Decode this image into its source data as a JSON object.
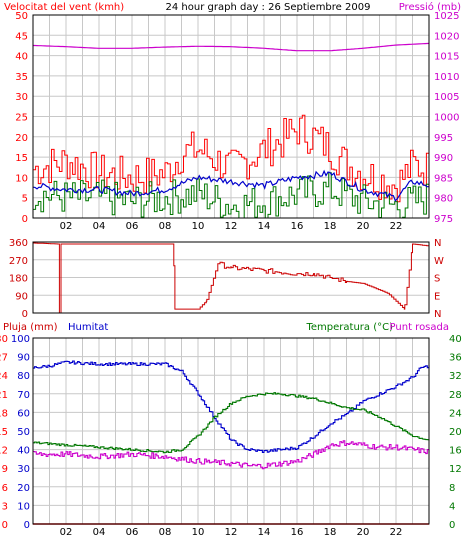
{
  "header": {
    "left": "Velocitat del vent (kmh)",
    "center": "24 hour graph day : 26 Septiembre 2009",
    "right": "Pressió (mb)"
  },
  "colors": {
    "wind": "#ff0000",
    "gust": "#ff0000",
    "avg_wind": "#0000cc",
    "direction": "#cc0000",
    "pressure": "#cc00cc",
    "rain": "#ff0000",
    "humidity": "#0000cc",
    "temperature": "#007700",
    "dewpoint": "#cc00cc",
    "grid": "#c8c8c8",
    "frame": "#000000"
  },
  "chart_data": [
    {
      "type": "line",
      "name": "wind-pressure",
      "x_ticks": [
        "02",
        "04",
        "06",
        "08",
        "10",
        "12",
        "14",
        "16",
        "18",
        "20",
        "22"
      ],
      "y_left": {
        "ticks": [
          "0",
          "5",
          "10",
          "15",
          "20",
          "25",
          "30",
          "35",
          "40",
          "45",
          "50"
        ],
        "min": 0,
        "max": 50
      },
      "y_right": {
        "ticks": [
          "975",
          "980",
          "985",
          "990",
          "995",
          "1000",
          "1005",
          "1010",
          "1015",
          "1020",
          "1025"
        ],
        "min": 975,
        "max": 1025
      },
      "series": [
        {
          "key": "pressure",
          "axis": "right",
          "x": [
            0,
            2,
            4,
            6,
            8,
            10,
            12,
            14,
            16,
            18,
            20,
            22,
            24
          ],
          "values": [
            1017.5,
            1017.2,
            1016.8,
            1016.8,
            1017.1,
            1017.3,
            1017.2,
            1016.8,
            1016.2,
            1016.2,
            1016.8,
            1017.6,
            1018.0
          ]
        },
        {
          "key": "gust",
          "axis": "left",
          "x": [
            0,
            2,
            4,
            6,
            8,
            9,
            10,
            12,
            14,
            15,
            16,
            17,
            18,
            19,
            20,
            22,
            23,
            24
          ],
          "values": [
            12,
            14,
            11,
            10,
            11,
            16,
            17,
            12,
            17,
            19,
            22,
            20,
            17,
            13,
            11,
            8,
            13,
            12
          ]
        },
        {
          "key": "avg_wind",
          "axis": "left",
          "x": [
            0,
            2,
            4,
            6,
            8,
            10,
            12,
            14,
            16,
            18,
            20,
            22,
            23,
            24
          ],
          "values": [
            8,
            7,
            7,
            6,
            7,
            10,
            9,
            8,
            10,
            11,
            7,
            5,
            9,
            8
          ]
        },
        {
          "key": "wind",
          "axis": "left",
          "x": [
            0,
            2,
            4,
            6,
            8,
            10,
            12,
            14,
            16,
            18,
            20,
            22,
            24
          ],
          "values": [
            6,
            5,
            5,
            4,
            5,
            6,
            3,
            4,
            6,
            7,
            4,
            3,
            5
          ]
        }
      ]
    },
    {
      "type": "line",
      "name": "wind-direction",
      "y_left": {
        "ticks": [
          "0",
          "90",
          "180",
          "270",
          "360"
        ],
        "min": 0,
        "max": 360
      },
      "y_right": {
        "ticks": [
          "N",
          "E",
          "S",
          "W",
          "N"
        ]
      },
      "series": [
        {
          "key": "direction",
          "x": [
            0,
            1.5,
            1.6,
            1.7,
            8.5,
            8.6,
            10,
            10.5,
            10.8,
            11.2,
            12,
            14,
            16,
            17,
            18,
            19,
            20,
            21.5,
            22,
            22.5,
            23,
            24
          ],
          "values": [
            355,
            350,
            0,
            350,
            350,
            20,
            20,
            60,
            140,
            250,
            230,
            215,
            200,
            200,
            180,
            160,
            150,
            100,
            60,
            20,
            350,
            340
          ]
        }
      ]
    },
    {
      "type": "line",
      "name": "rain-humidity-temperature",
      "labels": {
        "rain": "Pluja (mm)",
        "humidity": "Humitat",
        "temperature": "Temperatura (°C)",
        "dewpoint": "Punt rosada"
      },
      "y_rain": {
        "ticks": [
          "0",
          "3",
          "6",
          "9",
          "12",
          "15",
          "18",
          "21",
          "24",
          "27",
          "30"
        ],
        "min": 0,
        "max": 30
      },
      "y_humidity": {
        "ticks": [
          "0",
          "10",
          "20",
          "30",
          "40",
          "50",
          "60",
          "70",
          "80",
          "90",
          "100"
        ],
        "min": 0,
        "max": 100
      },
      "y_temp": {
        "ticks": [
          "0",
          "4",
          "8",
          "12",
          "16",
          "20",
          "24",
          "28",
          "32",
          "36",
          "40"
        ],
        "min": 0,
        "max": 40
      },
      "series": [
        {
          "key": "rain",
          "axis": "rain",
          "x": [
            0,
            24
          ],
          "values": [
            0,
            0
          ]
        },
        {
          "key": "humidity",
          "axis": "humidity",
          "x": [
            0,
            1,
            2,
            4,
            6,
            8,
            9,
            10,
            11,
            12,
            13,
            14,
            15,
            16,
            17,
            18,
            19,
            20,
            21,
            22,
            23,
            23.5,
            24
          ],
          "values": [
            84,
            85,
            87,
            86,
            86,
            86,
            82,
            70,
            57,
            45,
            40,
            39,
            40,
            41,
            47,
            54,
            59,
            66,
            70,
            74,
            79,
            84,
            85
          ]
        },
        {
          "key": "temperature",
          "axis": "temp",
          "x": [
            0,
            2,
            4,
            6,
            8,
            9,
            10,
            11,
            12,
            13,
            14,
            15,
            16,
            17,
            18,
            19,
            20,
            21,
            22,
            23,
            24
          ],
          "values": [
            17.5,
            17,
            16.5,
            16,
            15.5,
            16,
            19,
            23,
            26,
            27.5,
            28,
            28,
            27.5,
            27,
            26,
            25,
            24.5,
            23,
            21,
            19,
            18
          ]
        },
        {
          "key": "dewpoint",
          "axis": "temp",
          "x": [
            0,
            2,
            4,
            6,
            8,
            10,
            12,
            13,
            14,
            15,
            16,
            17,
            18,
            19,
            20,
            21,
            22,
            23,
            24
          ],
          "values": [
            15,
            15,
            14.5,
            15,
            14.5,
            13.5,
            13,
            12.5,
            12.5,
            13,
            13.5,
            15,
            17,
            17.5,
            17,
            16.5,
            16.5,
            16,
            15.5
          ]
        }
      ]
    }
  ]
}
